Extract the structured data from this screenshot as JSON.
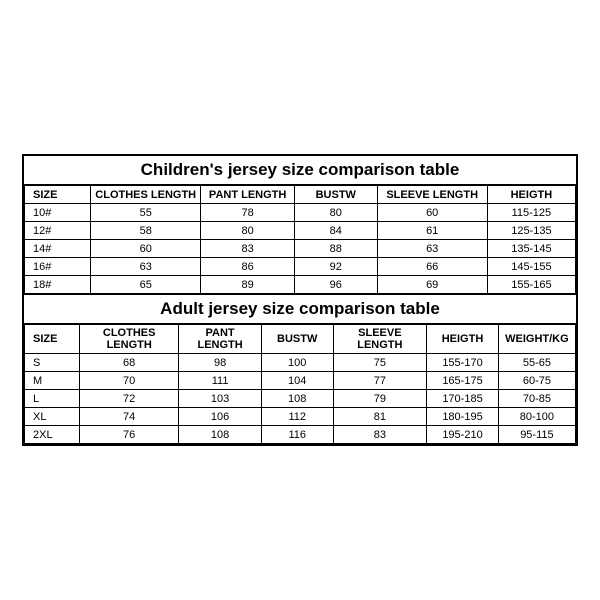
{
  "children": {
    "title": "Children's jersey size comparison table",
    "columns": [
      "SIZE",
      "CLOTHES LENGTH",
      "PANT LENGTH",
      "BUSTW",
      "SLEEVE LENGTH",
      "HEIGTH"
    ],
    "col_widths": [
      "12%",
      "20%",
      "17%",
      "15%",
      "20%",
      "16%"
    ],
    "rows": [
      [
        "10#",
        "55",
        "78",
        "80",
        "60",
        "115-125"
      ],
      [
        "12#",
        "58",
        "80",
        "84",
        "61",
        "125-135"
      ],
      [
        "14#",
        "60",
        "83",
        "88",
        "63",
        "135-145"
      ],
      [
        "16#",
        "63",
        "86",
        "92",
        "66",
        "145-155"
      ],
      [
        "18#",
        "65",
        "89",
        "96",
        "69",
        "155-165"
      ]
    ]
  },
  "adult": {
    "title": "Adult jersey size comparison table",
    "columns": [
      "SIZE",
      "CLOTHES LENGTH",
      "PANT LENGTH",
      "BUSTW",
      "SLEEVE LENGTH",
      "HEIGTH",
      "WEIGHT/KG"
    ],
    "col_widths": [
      "10%",
      "18%",
      "15%",
      "13%",
      "17%",
      "13%",
      "14%"
    ],
    "rows": [
      [
        "S",
        "68",
        "98",
        "100",
        "75",
        "155-170",
        "55-65"
      ],
      [
        "M",
        "70",
        "111",
        "104",
        "77",
        "165-175",
        "60-75"
      ],
      [
        "L",
        "72",
        "103",
        "108",
        "79",
        "170-185",
        "70-85"
      ],
      [
        "XL",
        "74",
        "106",
        "112",
        "81",
        "180-195",
        "80-100"
      ],
      [
        "2XL",
        "76",
        "108",
        "116",
        "83",
        "195-210",
        "95-115"
      ]
    ]
  },
  "colors": {
    "border": "#000000",
    "background": "#ffffff",
    "text": "#000000"
  },
  "typography": {
    "title_fontsize": 17,
    "title_fontweight": "bold",
    "cell_fontsize": 11,
    "font_family": "Arial"
  }
}
